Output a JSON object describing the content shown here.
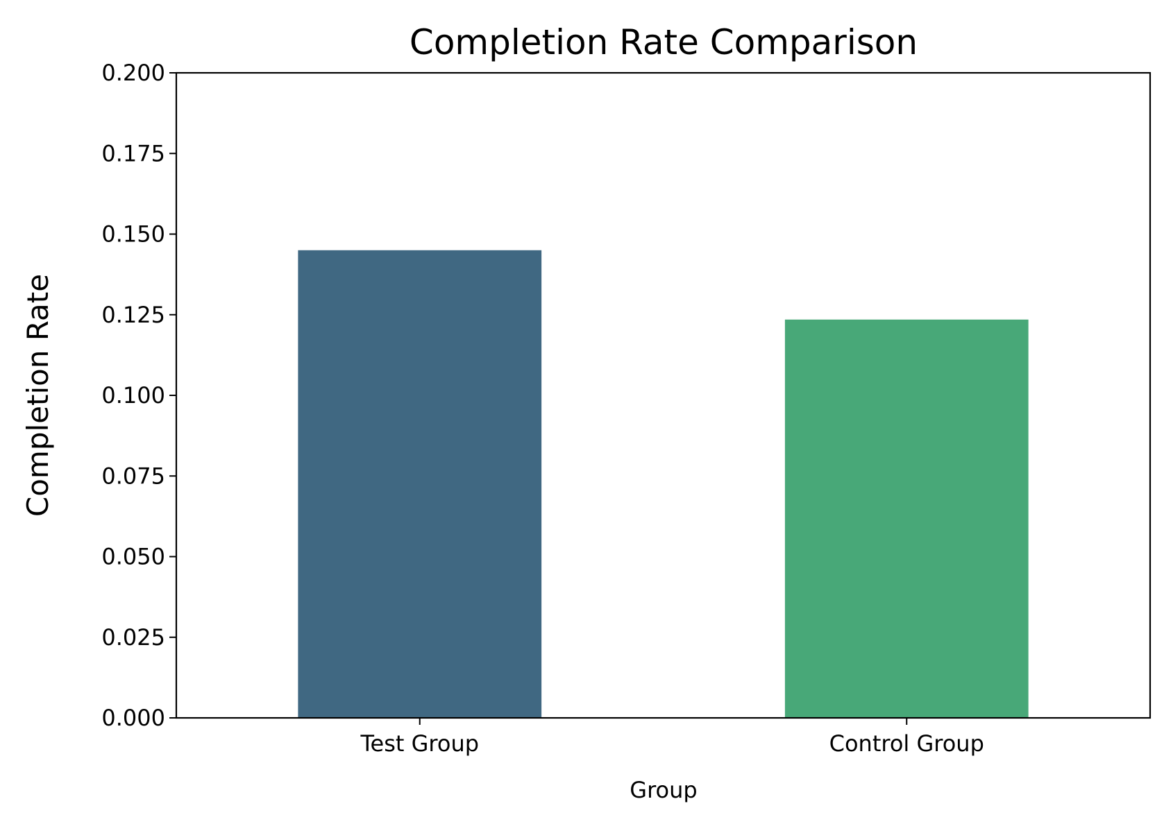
{
  "chart_data": {
    "type": "bar",
    "title": "Completion Rate Comparison",
    "xlabel": "Group",
    "ylabel": "Completion Rate",
    "categories": [
      "Test Group",
      "Control Group"
    ],
    "values": [
      0.145,
      0.1235
    ],
    "colors": [
      "#406882",
      "#48a878"
    ],
    "ylim": [
      0,
      0.2
    ],
    "yticks": [
      0.0,
      0.025,
      0.05,
      0.075,
      0.1,
      0.125,
      0.15,
      0.175,
      0.2
    ],
    "ytick_labels": [
      "0.000",
      "0.025",
      "0.050",
      "0.075",
      "0.100",
      "0.125",
      "0.150",
      "0.175",
      "0.200"
    ],
    "grid": false,
    "legend": "none"
  }
}
